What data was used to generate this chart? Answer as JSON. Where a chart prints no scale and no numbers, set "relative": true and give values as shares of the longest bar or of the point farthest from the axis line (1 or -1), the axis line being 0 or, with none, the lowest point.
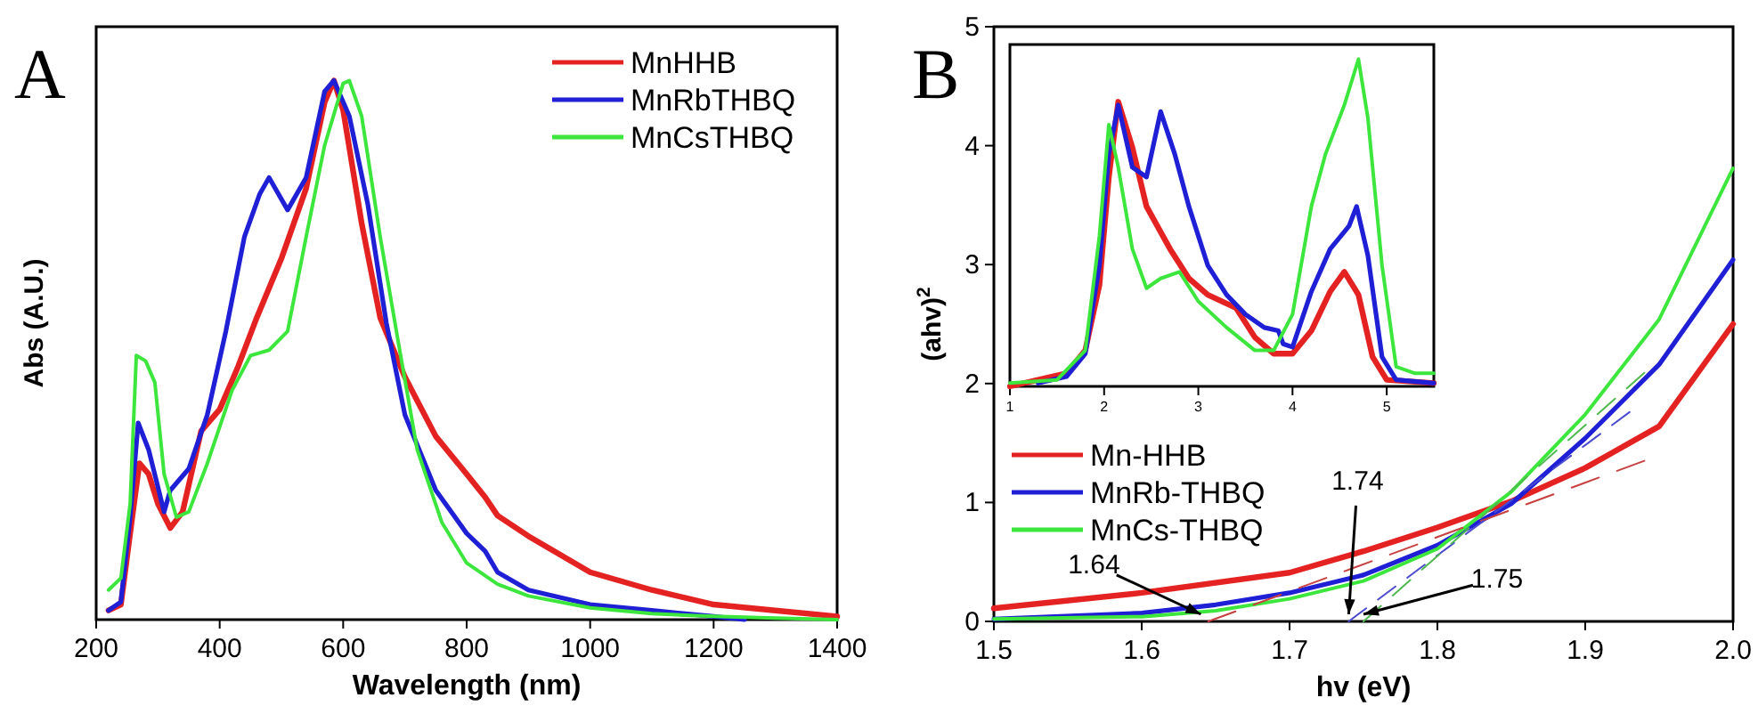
{
  "chart_data": [
    {
      "type": "line",
      "title": "A",
      "xlabel": "Wavelength (nm)",
      "ylabel": "Abs (A.U.)",
      "relative": true,
      "xlim": [
        200,
        1400
      ],
      "xticks": [
        200,
        400,
        600,
        800,
        1000,
        1200,
        1400
      ],
      "legend": "top right",
      "grid": false,
      "tick_labels": "x",
      "series": [
        {
          "name": "MnHHB",
          "color": "#e52222",
          "x": [
            220,
            240,
            255,
            270,
            285,
            300,
            320,
            340,
            370,
            400,
            430,
            460,
            500,
            540,
            570,
            585,
            600,
            630,
            660,
            700,
            750,
            800,
            830,
            850,
            900,
            1000,
            1100,
            1200,
            1300,
            1400
          ],
          "values": [
            0.017,
            0.028,
            0.16,
            0.29,
            0.27,
            0.215,
            0.17,
            0.2,
            0.35,
            0.39,
            0.47,
            0.56,
            0.67,
            0.8,
            0.96,
            1,
            0.945,
            0.735,
            0.56,
            0.45,
            0.34,
            0.27,
            0.227,
            0.193,
            0.155,
            0.088,
            0.055,
            0.028,
            0.017,
            0.006
          ]
        },
        {
          "name": "MnRbTHBQ",
          "color": "#1f1fd6",
          "x": [
            220,
            240,
            255,
            268,
            285,
            310,
            320,
            350,
            380,
            410,
            440,
            465,
            480,
            510,
            540,
            570,
            585,
            610,
            640,
            670,
            700,
            750,
            800,
            830,
            850,
            900,
            1000,
            1100,
            1200,
            1250
          ],
          "values": [
            0.017,
            0.033,
            0.19,
            0.365,
            0.315,
            0.2,
            0.24,
            0.28,
            0.38,
            0.535,
            0.71,
            0.79,
            0.82,
            0.76,
            0.82,
            0.98,
            1,
            0.934,
            0.77,
            0.55,
            0.38,
            0.24,
            0.16,
            0.127,
            0.088,
            0.055,
            0.028,
            0.017,
            0.006,
            0
          ]
        },
        {
          "name": "MnCsTHBQ",
          "color": "#3de63d",
          "x": [
            220,
            240,
            255,
            265,
            280,
            295,
            310,
            330,
            350,
            380,
            420,
            450,
            480,
            510,
            540,
            570,
            600,
            610,
            630,
            660,
            690,
            720,
            760,
            800,
            850,
            900,
            1000,
            1100,
            1200,
            1300,
            1400
          ],
          "values": [
            0.055,
            0.077,
            0.215,
            0.49,
            0.48,
            0.44,
            0.27,
            0.19,
            0.2,
            0.29,
            0.425,
            0.49,
            0.5,
            0.535,
            0.71,
            0.88,
            0.995,
            1,
            0.934,
            0.71,
            0.51,
            0.315,
            0.18,
            0.105,
            0.066,
            0.044,
            0.022,
            0.011,
            0.006,
            0.003,
            0
          ]
        }
      ]
    },
    {
      "type": "line",
      "title": "B",
      "xlabel": "hv (eV)",
      "ylabel": "(ahv)$^{2}$",
      "xlim": [
        1.5,
        2.0
      ],
      "xticks": [
        {
          "value": 1.5,
          "label": "1.5"
        },
        {
          "value": 1.6,
          "label": "1.6"
        },
        {
          "value": 1.7,
          "label": "1.7"
        },
        {
          "value": 1.8,
          "label": "1.8"
        },
        {
          "value": 1.9,
          "label": "1.9"
        },
        {
          "value": 2.0,
          "label": "2.0"
        }
      ],
      "ylim": [
        0,
        5
      ],
      "yticks": [
        0,
        1,
        2,
        3,
        4,
        5
      ],
      "legend": "left",
      "grid": false,
      "annotations": [
        {
          "text": "1.64",
          "x": 1.64,
          "y": 0
        },
        {
          "text": "1.74",
          "x": 1.74,
          "y": 0
        },
        {
          "text": "1.75",
          "x": 1.75,
          "y": 0
        }
      ],
      "series": [
        {
          "name": "Mn-HHB",
          "color": "#e52222",
          "x": [
            1.5,
            1.6,
            1.7,
            1.75,
            1.8,
            1.85,
            1.9,
            1.95,
            2.0
          ],
          "values": [
            0.11,
            0.24,
            0.41,
            0.59,
            0.79,
            1.01,
            1.29,
            1.64,
            2.5
          ]
        },
        {
          "name": "MnRb-THBQ",
          "color": "#1f1fd6",
          "x": [
            1.5,
            1.6,
            1.65,
            1.7,
            1.75,
            1.8,
            1.85,
            1.9,
            1.95,
            2.0
          ],
          "values": [
            0.02,
            0.07,
            0.14,
            0.24,
            0.39,
            0.64,
            0.99,
            1.54,
            2.16,
            3.04
          ]
        },
        {
          "name": "MnCs-THBQ",
          "color": "#3de63d",
          "x": [
            1.5,
            1.6,
            1.65,
            1.7,
            1.75,
            1.8,
            1.85,
            1.9,
            1.95,
            2.0
          ],
          "values": [
            0.02,
            0.04,
            0.09,
            0.19,
            0.34,
            0.61,
            1.09,
            1.74,
            2.54,
            3.81
          ]
        },
        {
          "type": "line",
          "line_style": "dashed",
          "color": "#c84040",
          "x": [
            1.645,
            1.94
          ],
          "values": [
            0,
            1.35
          ]
        },
        {
          "type": "line",
          "line_style": "dashed",
          "color": "#4a4ad0",
          "x": [
            1.74,
            1.93
          ],
          "values": [
            0,
            1.76
          ]
        },
        {
          "type": "line",
          "line_style": "dashed",
          "color": "#50b850",
          "x": [
            1.75,
            1.94
          ],
          "values": [
            0,
            2.09
          ]
        }
      ]
    },
    {
      "type": "line",
      "relative": true,
      "xlim": [
        1,
        5.5
      ],
      "xticks": [
        1,
        2,
        3,
        4,
        5
      ],
      "tick_labels": "x",
      "legend": false,
      "grid": false,
      "series": [
        {
          "color": "#e52222",
          "x": [
            1.0,
            1.3,
            1.6,
            1.8,
            1.95,
            2.05,
            2.15,
            2.3,
            2.45,
            2.7,
            2.9,
            3.1,
            3.4,
            3.6,
            3.8,
            4.0,
            4.2,
            4.4,
            4.55,
            4.7,
            4.85,
            5.0,
            5.5
          ],
          "values": [
            0,
            0.02,
            0.04,
            0.11,
            0.31,
            0.64,
            0.87,
            0.73,
            0.55,
            0.42,
            0.33,
            0.28,
            0.24,
            0.15,
            0.1,
            0.1,
            0.17,
            0.29,
            0.35,
            0.28,
            0.09,
            0.02,
            0.01
          ]
        },
        {
          "color": "#1f1fd6",
          "x": [
            1.3,
            1.6,
            1.8,
            1.95,
            2.05,
            2.15,
            2.3,
            2.45,
            2.6,
            2.75,
            2.9,
            3.1,
            3.3,
            3.5,
            3.7,
            3.85,
            3.9,
            4.0,
            4.2,
            4.4,
            4.6,
            4.68,
            4.8,
            4.95,
            5.1,
            5.5
          ],
          "values": [
            0.01,
            0.03,
            0.1,
            0.37,
            0.71,
            0.86,
            0.67,
            0.64,
            0.84,
            0.71,
            0.55,
            0.37,
            0.28,
            0.22,
            0.18,
            0.17,
            0.13,
            0.12,
            0.29,
            0.42,
            0.49,
            0.55,
            0.4,
            0.09,
            0.02,
            0.01
          ]
        },
        {
          "color": "#3de63d",
          "x": [
            1.0,
            1.5,
            1.8,
            1.95,
            2.05,
            2.15,
            2.3,
            2.45,
            2.6,
            2.8,
            3.0,
            3.3,
            3.6,
            3.8,
            4.0,
            4.2,
            4.35,
            4.55,
            4.7,
            4.8,
            4.95,
            5.1,
            5.3,
            5.5
          ],
          "values": [
            0.01,
            0.02,
            0.11,
            0.46,
            0.8,
            0.67,
            0.42,
            0.3,
            0.33,
            0.35,
            0.26,
            0.18,
            0.11,
            0.11,
            0.22,
            0.55,
            0.71,
            0.86,
            1,
            0.82,
            0.37,
            0.06,
            0.04,
            0.04
          ]
        }
      ]
    }
  ]
}
